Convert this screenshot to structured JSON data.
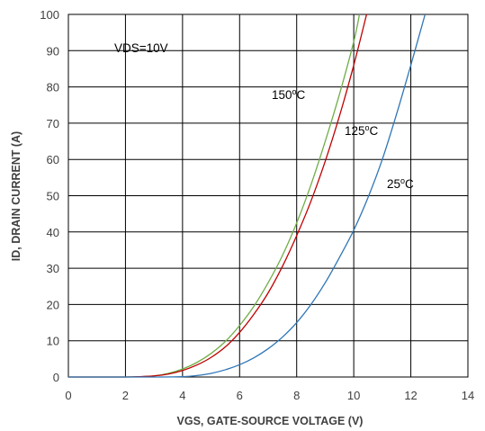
{
  "chart_data": {
    "type": "line",
    "title": "",
    "xlabel": "VGS, GATE-SOURCE VOLTAGE (V)",
    "ylabel": "ID, DRAIN CURRENT (A)",
    "xlim": [
      0,
      14
    ],
    "ylim": [
      0,
      100
    ],
    "x_ticks": [
      0,
      2,
      4,
      6,
      8,
      10,
      12,
      14
    ],
    "y_ticks": [
      0,
      10,
      20,
      30,
      40,
      50,
      60,
      70,
      80,
      90,
      100
    ],
    "grid": true,
    "annotations": {
      "condition": "VDS=10V"
    },
    "series": [
      {
        "name": "150ºC",
        "label_main": "150",
        "label_sup": "o",
        "label_unit": "C",
        "color": "#70ad47",
        "x": [
          0.0,
          1.0,
          2.0,
          2.5,
          3.0,
          3.5,
          4.0,
          4.5,
          5.0,
          5.5,
          6.0,
          6.5,
          7.0,
          7.5,
          8.0,
          8.5,
          9.0,
          9.5,
          10.0,
          10.2
        ],
        "y": [
          0.0,
          0.0,
          0.0,
          0.1,
          0.3,
          1.0,
          2.2,
          4.0,
          6.5,
          9.8,
          14.2,
          19.5,
          26.0,
          33.5,
          42.5,
          53.0,
          65.0,
          78.0,
          92.5,
          100.0
        ]
      },
      {
        "name": "125ºC",
        "label_main": "125",
        "label_sup": "o",
        "label_unit": "C",
        "color": "#c00000",
        "x": [
          0.0,
          1.0,
          2.0,
          2.5,
          3.0,
          3.5,
          4.0,
          4.5,
          5.0,
          5.5,
          6.0,
          6.5,
          7.0,
          7.5,
          8.0,
          8.5,
          9.0,
          9.5,
          10.0,
          10.45
        ],
        "y": [
          0.0,
          0.0,
          0.0,
          0.1,
          0.3,
          0.8,
          1.8,
          3.3,
          5.4,
          8.3,
          12.3,
          17.3,
          23.2,
          30.5,
          39.0,
          48.5,
          59.5,
          72.0,
          86.0,
          100.0
        ]
      },
      {
        "name": "25ºC",
        "label_main": "25",
        "label_sup": "o",
        "label_unit": "C",
        "color": "#2e75b6",
        "x": [
          0.0,
          1.0,
          2.0,
          3.0,
          4.0,
          4.5,
          5.0,
          5.5,
          6.0,
          6.5,
          7.0,
          7.5,
          8.0,
          8.5,
          9.0,
          9.5,
          10.0,
          10.5,
          11.0,
          11.5,
          12.0,
          12.5
        ],
        "y": [
          0.0,
          0.0,
          0.0,
          0.0,
          0.1,
          0.4,
          1.0,
          2.0,
          3.4,
          5.3,
          7.8,
          11.0,
          15.0,
          20.0,
          26.0,
          33.0,
          40.5,
          49.5,
          60.0,
          72.5,
          86.0,
          100.0
        ]
      }
    ]
  }
}
